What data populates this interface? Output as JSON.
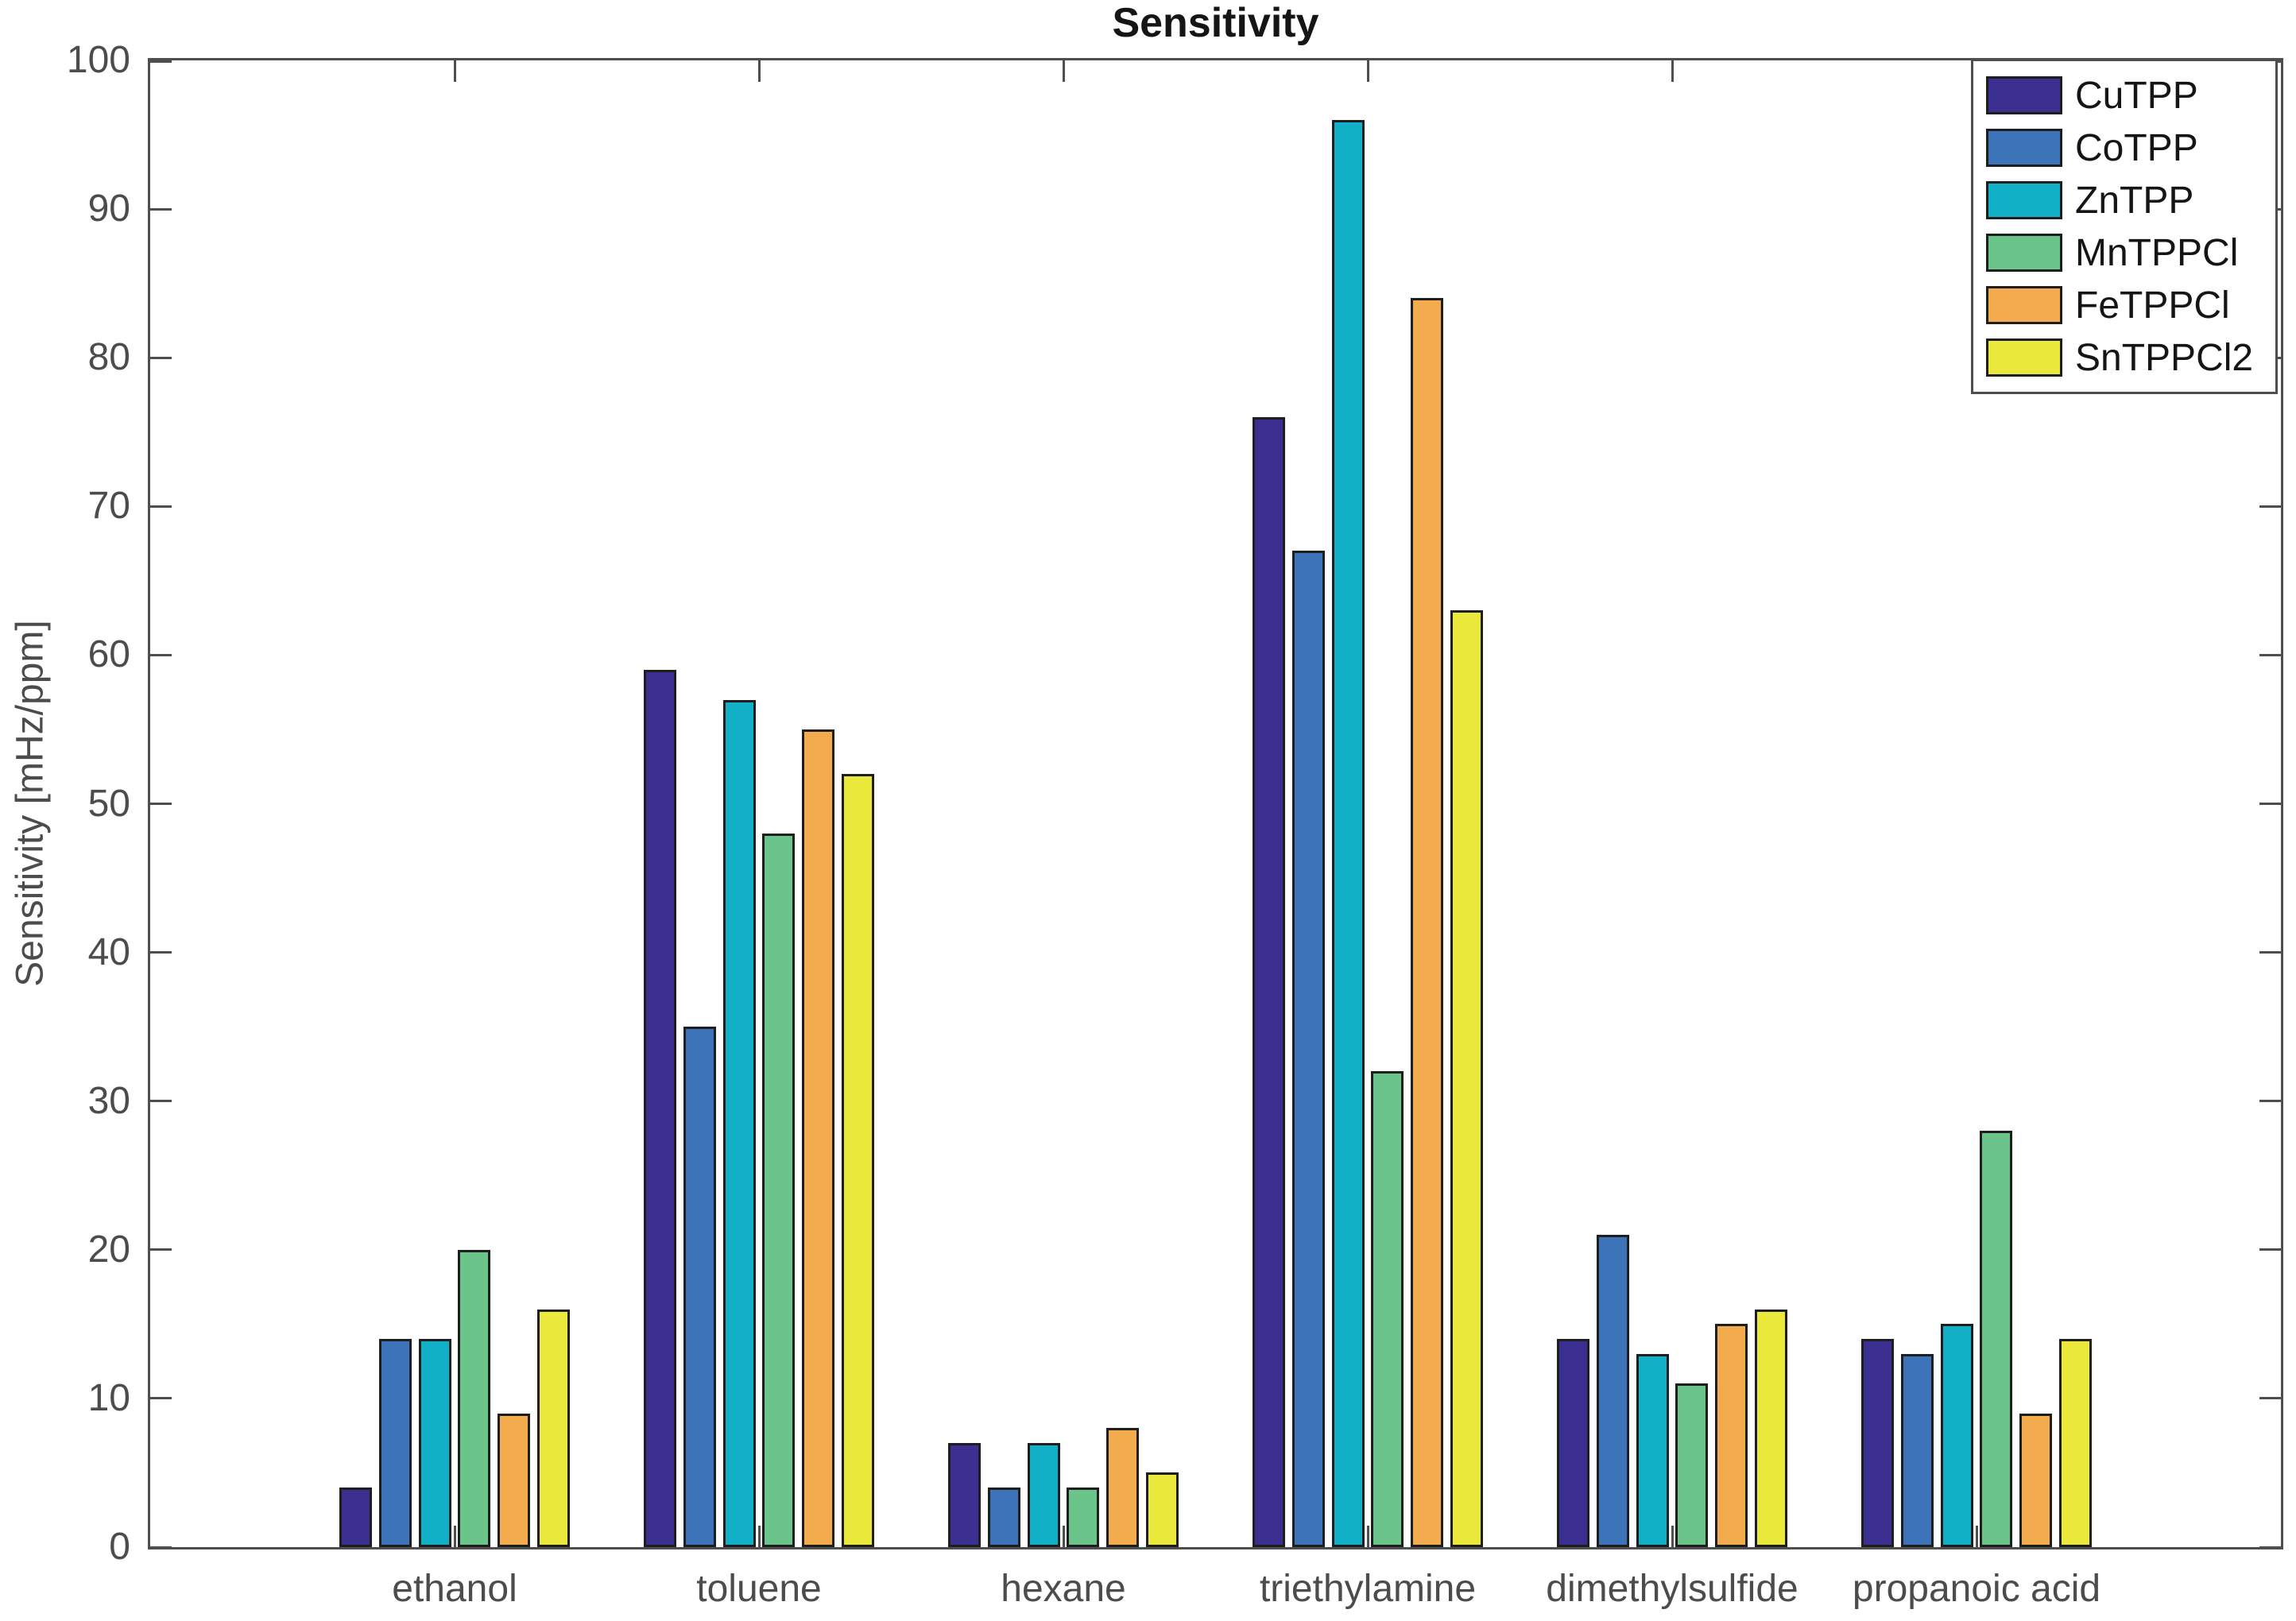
{
  "figure": {
    "title": "Sensitivity"
  },
  "chart_data": {
    "type": "bar",
    "title": "Sensitivity",
    "xlabel": "",
    "ylabel": "Sensitivity [mHz/ppm]",
    "ylim": [
      0,
      100
    ],
    "ytick_step": 10,
    "grid": false,
    "legend_position": "top-right",
    "axis_color": "#4f4f4f",
    "tick_label_color": "#4c4c4c",
    "bar_edge_color": "#1e1e1e",
    "categories": [
      "ethanol",
      "toluene",
      "hexane",
      "triethylamine",
      "dimethylsulfide",
      "propanoic acid"
    ],
    "series": [
      {
        "name": "CuTPP",
        "color": "#3B2F92",
        "values": [
          4,
          59,
          7,
          76,
          14,
          14
        ]
      },
      {
        "name": "CoTPP",
        "color": "#3C73B9",
        "values": [
          14,
          35,
          4,
          67,
          21,
          13
        ]
      },
      {
        "name": "ZnTPP",
        "color": "#12B0C6",
        "values": [
          14,
          57,
          7,
          96,
          13,
          15
        ]
      },
      {
        "name": "MnTPPCl",
        "color": "#6BC48A",
        "values": [
          20,
          48,
          4,
          32,
          11,
          28
        ]
      },
      {
        "name": "FeTPPCl",
        "color": "#F2AC4E",
        "values": [
          9,
          55,
          8,
          84,
          15,
          9
        ]
      },
      {
        "name": "SnTPPCl2",
        "color": "#EBE83C",
        "values": [
          16,
          52,
          5,
          63,
          16,
          14
        ]
      }
    ]
  }
}
